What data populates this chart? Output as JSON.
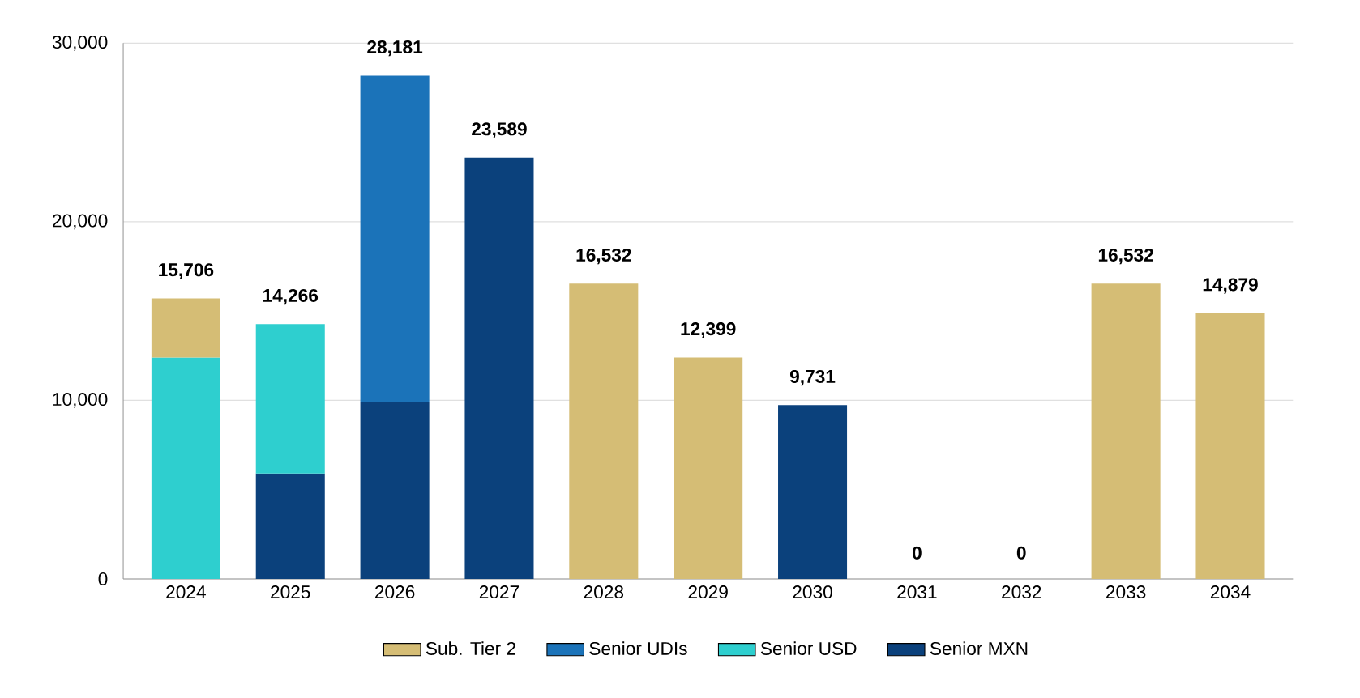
{
  "chart_data": {
    "type": "bar",
    "stacked": true,
    "categories": [
      "2024",
      "2025",
      "2026",
      "2027",
      "2028",
      "2029",
      "2030",
      "2031",
      "2032",
      "2033",
      "2034"
    ],
    "series": [
      {
        "name": "Senior MXN",
        "color": "#0b417c",
        "values": [
          null,
          5900,
          9900,
          23589,
          null,
          null,
          9731,
          null,
          null,
          null,
          null
        ]
      },
      {
        "name": "Senior USD",
        "color": "#2ecfcf",
        "values": [
          12400,
          8366,
          null,
          null,
          null,
          null,
          null,
          null,
          null,
          null,
          null
        ]
      },
      {
        "name": "Senior UDIs",
        "color": "#1b73b9",
        "values": [
          null,
          null,
          18281,
          null,
          null,
          null,
          null,
          null,
          null,
          null,
          null
        ]
      },
      {
        "name": "Sub. Tier 2",
        "color": "#d5bd75",
        "values": [
          3306,
          null,
          null,
          null,
          16532,
          12399,
          null,
          null,
          null,
          16532,
          14879
        ]
      }
    ],
    "totals": [
      "15,706",
      "14,266",
      "28,181",
      "23,589",
      "16,532",
      "12,399",
      "9,731",
      "0",
      "0",
      "16,532",
      "14,879"
    ],
    "ylim": [
      0,
      30000
    ],
    "yticks": [
      {
        "value": 0,
        "label": "0"
      },
      {
        "value": 10000,
        "label": "10,000"
      },
      {
        "value": 20000,
        "label": "20,000"
      },
      {
        "value": 30000,
        "label": "30,000"
      }
    ],
    "grid": "y",
    "legend": "bottom"
  }
}
